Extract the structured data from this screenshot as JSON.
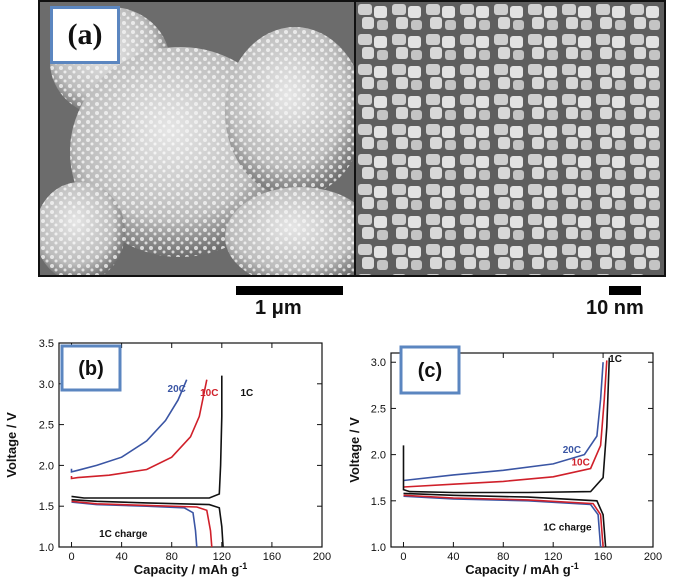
{
  "panel_a": {
    "label": "(a)",
    "scale_bar_left": "1 μm",
    "scale_bar_right": "10 nm"
  },
  "chart_data": [
    {
      "panel_label": "(b)",
      "type": "line",
      "xlabel": "Capacity  / mAh g",
      "xlabel_superscript": "-1",
      "ylabel": "Voltage / V",
      "xlim": [
        -10,
        200
      ],
      "ylim": [
        1.0,
        3.5
      ],
      "xticks": [
        0,
        40,
        80,
        120,
        160,
        200
      ],
      "yticks": [
        1.0,
        1.5,
        2.0,
        2.5,
        3.0,
        3.5
      ],
      "ytick_labels": [
        "1.0",
        "1.5",
        "2.0",
        "2.5",
        "3.0",
        "3.5"
      ],
      "series": [
        {
          "name": "20C",
          "color": "#3a55a4",
          "label_at": [
            84,
            2.9
          ],
          "points": [
            [
              0,
              1.96
            ],
            [
              0,
              1.92
            ],
            [
              5,
              1.94
            ],
            [
              20,
              2.0
            ],
            [
              40,
              2.1
            ],
            [
              60,
              2.3
            ],
            [
              75,
              2.55
            ],
            [
              85,
              2.8
            ],
            [
              92,
              3.05
            ]
          ]
        },
        {
          "name": "10C",
          "color": "#d0202a",
          "label_at": [
            110,
            2.85
          ],
          "points": [
            [
              0,
              1.87
            ],
            [
              0,
              1.84
            ],
            [
              5,
              1.85
            ],
            [
              30,
              1.88
            ],
            [
              60,
              1.95
            ],
            [
              80,
              2.1
            ],
            [
              95,
              2.35
            ],
            [
              102,
              2.6
            ],
            [
              108,
              3.05
            ]
          ]
        },
        {
          "name": "1C",
          "color": "#111111",
          "label_at": [
            140,
            2.85
          ],
          "points": [
            [
              0,
              1.62
            ],
            [
              10,
              1.6
            ],
            [
              60,
              1.6
            ],
            [
              110,
              1.6
            ],
            [
              118,
              1.65
            ],
            [
              119,
              2.0
            ],
            [
              120,
              2.6
            ],
            [
              120,
              3.1
            ]
          ]
        },
        {
          "name": "",
          "color": "#3a55a4",
          "points": [
            [
              0,
              1.55
            ],
            [
              20,
              1.52
            ],
            [
              60,
              1.5
            ],
            [
              90,
              1.48
            ],
            [
              97,
              1.42
            ],
            [
              99,
              1.2
            ],
            [
              100,
              1.0
            ]
          ]
        },
        {
          "name": "",
          "color": "#d0202a",
          "points": [
            [
              0,
              1.56
            ],
            [
              20,
              1.53
            ],
            [
              60,
              1.51
            ],
            [
              100,
              1.49
            ],
            [
              108,
              1.45
            ],
            [
              111,
              1.2
            ],
            [
              112,
              1.0
            ]
          ]
        },
        {
          "name": "",
          "color": "#111111",
          "points": [
            [
              0,
              1.58
            ],
            [
              20,
              1.56
            ],
            [
              60,
              1.54
            ],
            [
              110,
              1.52
            ],
            [
              118,
              1.48
            ],
            [
              120,
              1.25
            ],
            [
              121,
              1.0
            ]
          ]
        }
      ],
      "annotation": "1C charge",
      "annotation_at": [
        22,
        1.12
      ]
    },
    {
      "panel_label": "(c)",
      "type": "line",
      "xlabel": "Capacity  / mAh g",
      "xlabel_superscript": "-1",
      "ylabel": "Voltage  /  V",
      "xlim": [
        -10,
        200
      ],
      "ylim": [
        1.0,
        3.1
      ],
      "xticks": [
        0,
        40,
        80,
        120,
        160,
        200
      ],
      "yticks": [
        1.0,
        1.5,
        2.0,
        2.5,
        3.0
      ],
      "ytick_labels": [
        "1.0",
        "1.5",
        "2.0",
        "2.5",
        "3.0"
      ],
      "series": [
        {
          "name": "20C",
          "color": "#3a55a4",
          "label_at": [
            135,
            2.02
          ],
          "points": [
            [
              0,
              1.72
            ],
            [
              40,
              1.78
            ],
            [
              80,
              1.83
            ],
            [
              120,
              1.9
            ],
            [
              145,
              2.0
            ],
            [
              155,
              2.2
            ],
            [
              158,
              2.6
            ],
            [
              160,
              3.0
            ]
          ]
        },
        {
          "name": "10C",
          "color": "#d0202a",
          "label_at": [
            142,
            1.88
          ],
          "points": [
            [
              0,
              1.65
            ],
            [
              40,
              1.68
            ],
            [
              80,
              1.71
            ],
            [
              120,
              1.76
            ],
            [
              150,
              1.85
            ],
            [
              158,
              2.1
            ],
            [
              161,
              2.6
            ],
            [
              163,
              3.02
            ]
          ]
        },
        {
          "name": "1C",
          "color": "#111111",
          "label_at": [
            170,
            3.0
          ],
          "points": [
            [
              0,
              2.1
            ],
            [
              0,
              1.62
            ],
            [
              5,
              1.6
            ],
            [
              40,
              1.59
            ],
            [
              100,
              1.59
            ],
            [
              150,
              1.6
            ],
            [
              160,
              1.75
            ],
            [
              163,
              2.3
            ],
            [
              165,
              3.05
            ]
          ]
        },
        {
          "name": "",
          "color": "#3a55a4",
          "points": [
            [
              0,
              1.55
            ],
            [
              40,
              1.52
            ],
            [
              100,
              1.5
            ],
            [
              150,
              1.46
            ],
            [
              156,
              1.35
            ],
            [
              158,
              1.0
            ]
          ]
        },
        {
          "name": "",
          "color": "#d0202a",
          "points": [
            [
              0,
              1.56
            ],
            [
              40,
              1.53
            ],
            [
              100,
              1.51
            ],
            [
              152,
              1.47
            ],
            [
              158,
              1.35
            ],
            [
              160,
              1.0
            ]
          ]
        },
        {
          "name": "",
          "color": "#111111",
          "points": [
            [
              0,
              1.58
            ],
            [
              40,
              1.56
            ],
            [
              100,
              1.54
            ],
            [
              155,
              1.5
            ],
            [
              160,
              1.35
            ],
            [
              162,
              1.0
            ]
          ]
        }
      ],
      "annotation": "1C charge",
      "annotation_at": [
        112,
        1.18
      ]
    }
  ]
}
